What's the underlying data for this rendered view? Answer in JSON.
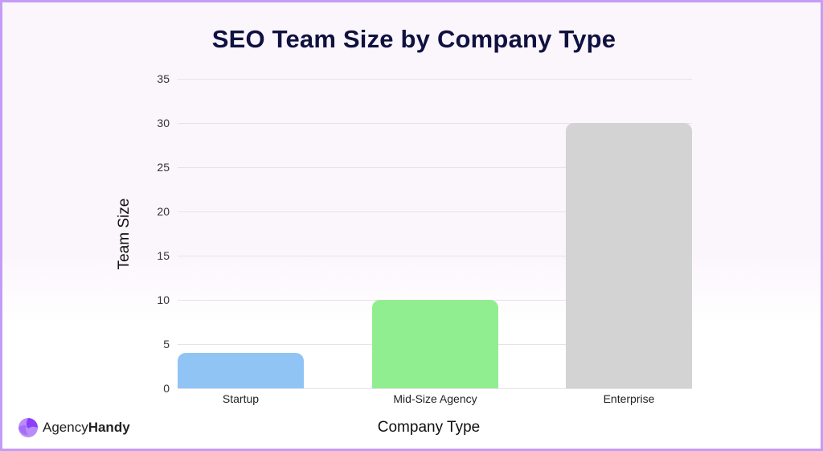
{
  "chart_data": {
    "type": "bar",
    "title": "SEO Team Size by Company Type",
    "xlabel": "Company Type",
    "ylabel": "Team Size",
    "categories": [
      "Startup",
      "Mid-Size Agency",
      "Enterprise"
    ],
    "values": [
      4,
      10,
      30
    ],
    "colors": [
      "#90c4f5",
      "#90ee90",
      "#d3d3d3"
    ],
    "ylim": [
      0,
      35
    ],
    "yticks": [
      0,
      5,
      10,
      15,
      20,
      25,
      30,
      35
    ],
    "grid": true,
    "legend": null
  },
  "brand": {
    "name_light": "Agency",
    "name_bold": "Handy",
    "logo_colors": [
      "#8a3ffc",
      "#b98cf7"
    ]
  },
  "frame": {
    "border_color": "#c39cf5",
    "background": "#fbf5fc"
  }
}
